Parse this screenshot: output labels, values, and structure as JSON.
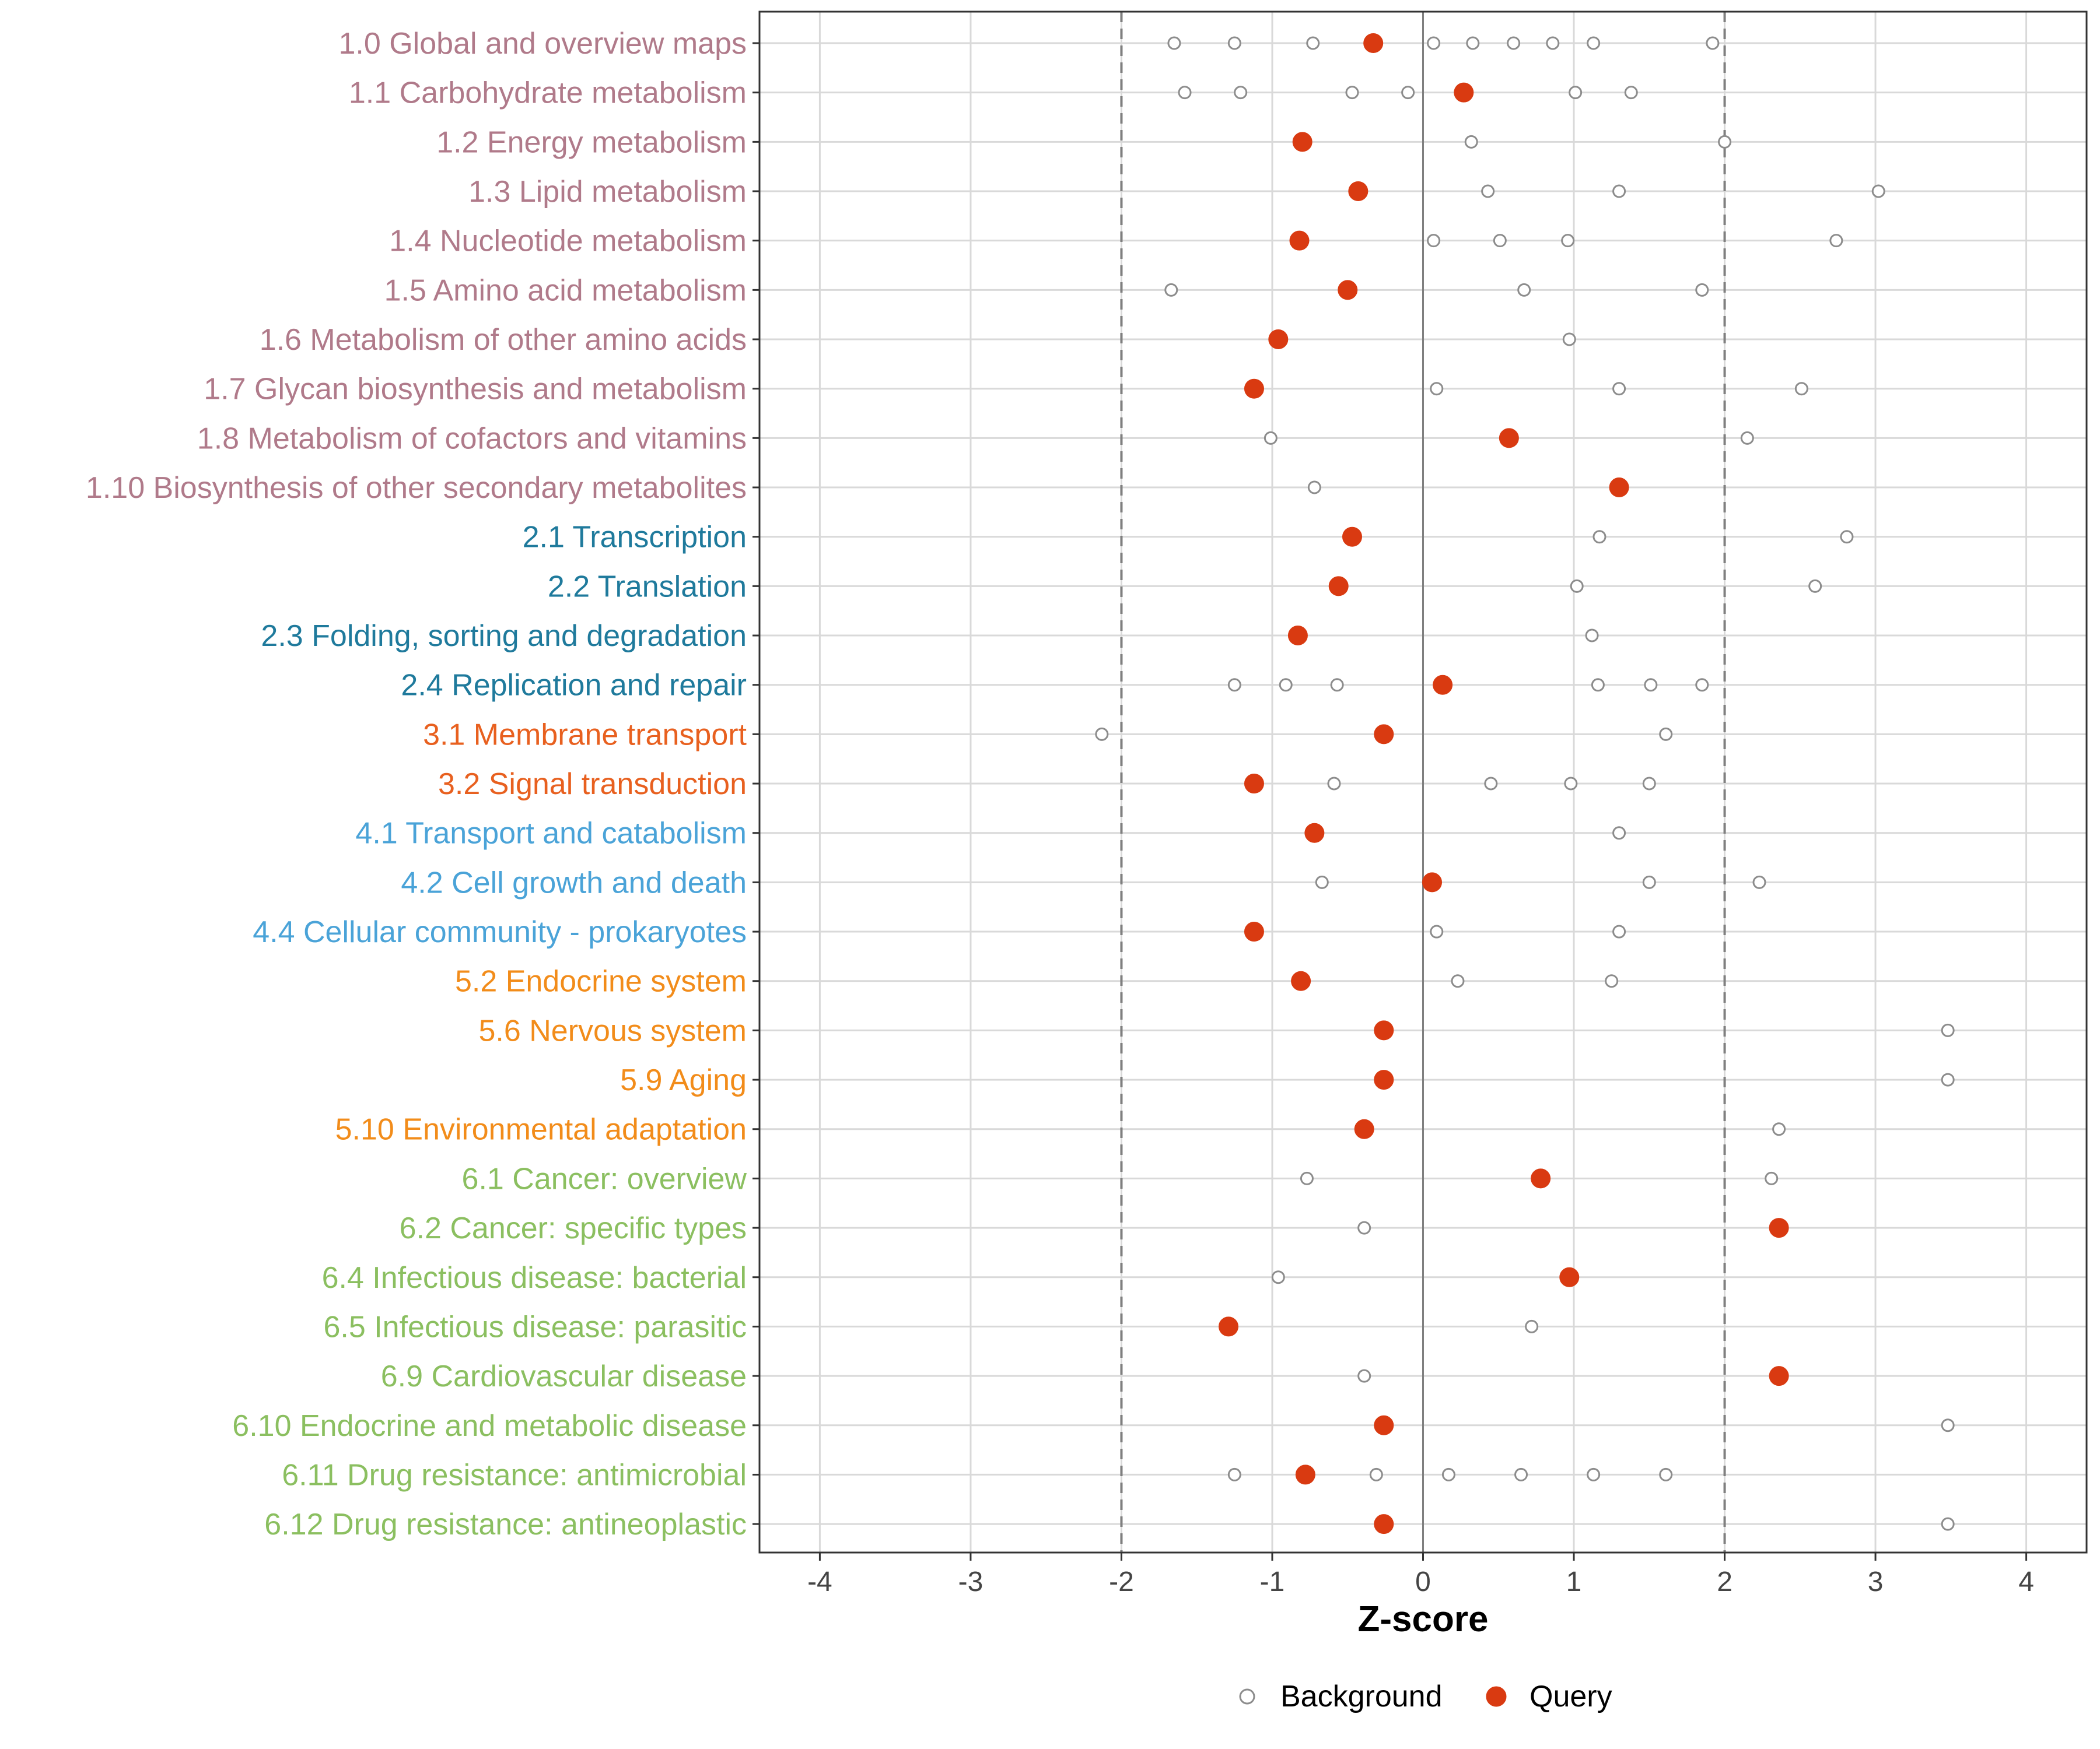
{
  "chart_data": {
    "type": "scatter",
    "title": "",
    "xlabel": "Z-score",
    "ylabel": "",
    "xlim": [
      -4.4,
      4.4
    ],
    "xticks": [
      -4,
      -3,
      -2,
      -1,
      0,
      1,
      2,
      3,
      4
    ],
    "xtick_labels": [
      "-4",
      "-3",
      "-2",
      "-1",
      "0",
      "1",
      "2",
      "3",
      "4"
    ],
    "threshold_lines": [
      -2,
      2
    ],
    "zero_line": 0,
    "grid": true,
    "legend": {
      "placement": "bottom",
      "entries": [
        "Background",
        "Query"
      ]
    },
    "colors": {
      "query": "#d93a11",
      "background_stroke": "#8c8c8c",
      "grid": "#d9d9d9",
      "axis": "#333333",
      "zero_line": "#7f7f7f",
      "threshold": "#7f7f7f",
      "group_1": "#b07a8a",
      "group_2": "#1f7a9c",
      "group_3": "#e8601f",
      "group_4": "#4aa3d8",
      "group_5": "#f28c1a",
      "group_6": "#8bbf60"
    },
    "categories": [
      {
        "label": "1.0 Global and overview maps",
        "group": "1",
        "query": -0.33,
        "background": [
          -1.65,
          -1.25,
          -0.73,
          0.07,
          0.33,
          0.6,
          0.86,
          1.13,
          1.92
        ]
      },
      {
        "label": "1.1 Carbohydrate metabolism",
        "group": "1",
        "query": 0.27,
        "background": [
          -1.58,
          -1.21,
          -0.47,
          -0.1,
          1.01,
          1.38
        ]
      },
      {
        "label": "1.2 Energy metabolism",
        "group": "1",
        "query": -0.8,
        "background": [
          0.32,
          2.0
        ]
      },
      {
        "label": "1.3 Lipid metabolism",
        "group": "1",
        "query": -0.43,
        "background": [
          0.43,
          1.3,
          3.02
        ]
      },
      {
        "label": "1.4 Nucleotide metabolism",
        "group": "1",
        "query": -0.82,
        "background": [
          0.07,
          0.51,
          0.96,
          2.74
        ]
      },
      {
        "label": "1.5 Amino acid metabolism",
        "group": "1",
        "query": -0.5,
        "background": [
          -1.67,
          0.67,
          1.85
        ]
      },
      {
        "label": "1.6 Metabolism of other amino acids",
        "group": "1",
        "query": -0.96,
        "background": [
          0.97
        ]
      },
      {
        "label": "1.7 Glycan biosynthesis and metabolism",
        "group": "1",
        "query": -1.12,
        "background": [
          0.09,
          1.3,
          2.51
        ]
      },
      {
        "label": "1.8 Metabolism of cofactors and vitamins",
        "group": "1",
        "query": 0.57,
        "background": [
          -1.01,
          2.15
        ]
      },
      {
        "label": "1.10 Biosynthesis of other secondary metabolites",
        "group": "1",
        "query": 1.3,
        "background": [
          -0.72
        ]
      },
      {
        "label": "2.1 Transcription",
        "group": "2",
        "query": -0.47,
        "background": [
          1.17,
          2.81
        ]
      },
      {
        "label": "2.2 Translation",
        "group": "2",
        "query": -0.56,
        "background": [
          1.02,
          2.6
        ]
      },
      {
        "label": "2.3 Folding, sorting and degradation",
        "group": "2",
        "query": -0.83,
        "background": [
          1.12
        ]
      },
      {
        "label": "2.4 Replication and repair",
        "group": "2",
        "query": 0.13,
        "background": [
          -1.25,
          -0.91,
          -0.57,
          1.16,
          1.51,
          1.85
        ]
      },
      {
        "label": "3.1 Membrane transport",
        "group": "3",
        "query": -0.26,
        "background": [
          -2.13,
          1.61
        ]
      },
      {
        "label": "3.2 Signal transduction",
        "group": "3",
        "query": -1.12,
        "background": [
          -0.59,
          0.45,
          0.98,
          1.5
        ]
      },
      {
        "label": "4.1 Transport and catabolism",
        "group": "4",
        "query": -0.72,
        "background": [
          1.3
        ]
      },
      {
        "label": "4.2 Cell growth and death",
        "group": "4",
        "query": 0.06,
        "background": [
          -0.67,
          1.5,
          2.23
        ]
      },
      {
        "label": "4.4 Cellular community - prokaryotes",
        "group": "4",
        "query": -1.12,
        "background": [
          0.09,
          1.3
        ]
      },
      {
        "label": "5.2 Endocrine system",
        "group": "5",
        "query": -0.81,
        "background": [
          0.23,
          1.25
        ]
      },
      {
        "label": "5.6 Nervous system",
        "group": "5",
        "query": -0.26,
        "background": [
          3.48
        ]
      },
      {
        "label": "5.9 Aging",
        "group": "5",
        "query": -0.26,
        "background": [
          3.48
        ]
      },
      {
        "label": "5.10 Environmental adaptation",
        "group": "5",
        "query": -0.39,
        "background": [
          2.36
        ]
      },
      {
        "label": "6.1 Cancer: overview",
        "group": "6",
        "query": 0.78,
        "background": [
          -0.77,
          2.31
        ]
      },
      {
        "label": "6.2 Cancer: specific types",
        "group": "6",
        "query": 2.36,
        "background": [
          -0.39
        ]
      },
      {
        "label": "6.4 Infectious disease: bacterial",
        "group": "6",
        "query": 0.97,
        "background": [
          -0.96
        ]
      },
      {
        "label": "6.5 Infectious disease: parasitic",
        "group": "6",
        "query": -1.29,
        "background": [
          0.72
        ]
      },
      {
        "label": "6.9 Cardiovascular disease",
        "group": "6",
        "query": 2.36,
        "background": [
          -0.39
        ]
      },
      {
        "label": "6.10 Endocrine and metabolic disease",
        "group": "6",
        "query": -0.26,
        "background": [
          3.48
        ]
      },
      {
        "label": "6.11 Drug resistance: antimicrobial",
        "group": "6",
        "query": -0.78,
        "background": [
          -1.25,
          -0.31,
          0.17,
          0.65,
          1.13,
          1.61
        ]
      },
      {
        "label": "6.12 Drug resistance: antineoplastic",
        "group": "6",
        "query": -0.26,
        "background": [
          3.48
        ]
      }
    ]
  }
}
